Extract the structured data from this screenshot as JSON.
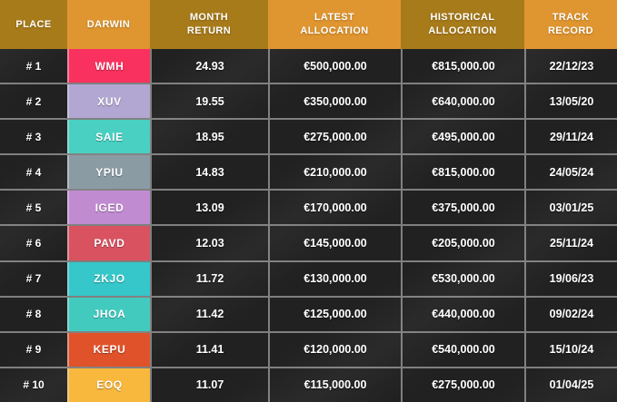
{
  "colors": {
    "header_dark": "#a87b1a",
    "header_light": "#e09630",
    "cell_background": "#212121",
    "grid_line": "rgba(222,222,222,0.5)",
    "text": "#ffffff"
  },
  "table": {
    "columns": [
      {
        "id": "place",
        "label": "PLACE",
        "header_style": "dark"
      },
      {
        "id": "darwin",
        "label": "DARWIN",
        "header_style": "light"
      },
      {
        "id": "month_return",
        "label": "MONTH\nRETURN",
        "header_style": "dark"
      },
      {
        "id": "latest_allocation",
        "label": "LATEST\nALLOCATION",
        "header_style": "light"
      },
      {
        "id": "historical_allocation",
        "label": "HISTORICAL\nALLOCATION",
        "header_style": "dark"
      },
      {
        "id": "track_record",
        "label": "TRACK\nRECORD",
        "header_style": "light"
      }
    ],
    "rows": [
      {
        "place": "# 1",
        "darwin": "WMH",
        "badge_color": "#f9315f",
        "month_return": "24.93",
        "latest_allocation": "€500,000.00",
        "historical_allocation": "€815,000.00",
        "track_record": "22/12/23"
      },
      {
        "place": "# 2",
        "darwin": "XUV",
        "badge_color": "#b1a7d2",
        "month_return": "19.55",
        "latest_allocation": "€350,000.00",
        "historical_allocation": "€640,000.00",
        "track_record": "13/05/20"
      },
      {
        "place": "# 3",
        "darwin": "SAIE",
        "badge_color": "#49d0c2",
        "month_return": "18.95",
        "latest_allocation": "€275,000.00",
        "historical_allocation": "€495,000.00",
        "track_record": "29/11/24"
      },
      {
        "place": "# 4",
        "darwin": "YPIU",
        "badge_color": "#8b9ba4",
        "month_return": "14.83",
        "latest_allocation": "€210,000.00",
        "historical_allocation": "€815,000.00",
        "track_record": "24/05/24"
      },
      {
        "place": "# 5",
        "darwin": "IGED",
        "badge_color": "#c18bd2",
        "month_return": "13.09",
        "latest_allocation": "€170,000.00",
        "historical_allocation": "€375,000.00",
        "track_record": "03/01/25"
      },
      {
        "place": "# 6",
        "darwin": "PAVD",
        "badge_color": "#d95260",
        "month_return": "12.03",
        "latest_allocation": "€145,000.00",
        "historical_allocation": "€205,000.00",
        "track_record": "25/11/24"
      },
      {
        "place": "# 7",
        "darwin": "ZKJO",
        "badge_color": "#35c7c9",
        "month_return": "11.72",
        "latest_allocation": "€130,000.00",
        "historical_allocation": "€530,000.00",
        "track_record": "19/06/23"
      },
      {
        "place": "# 8",
        "darwin": "JHOA",
        "badge_color": "#43cabf",
        "month_return": "11.42",
        "latest_allocation": "€125,000.00",
        "historical_allocation": "€440,000.00",
        "track_record": "09/02/24"
      },
      {
        "place": "# 9",
        "darwin": "KEPU",
        "badge_color": "#e0522a",
        "month_return": "11.41",
        "latest_allocation": "€120,000.00",
        "historical_allocation": "€540,000.00",
        "track_record": "15/10/24"
      },
      {
        "place": "# 10",
        "darwin": "EOQ",
        "badge_color": "#f8b73d",
        "month_return": "11.07",
        "latest_allocation": "€115,000.00",
        "historical_allocation": "€275,000.00",
        "track_record": "01/04/25"
      }
    ]
  },
  "chart_data": {
    "type": "table",
    "columns": [
      "PLACE",
      "DARWIN",
      "MONTH RETURN",
      "LATEST ALLOCATION",
      "HISTORICAL ALLOCATION",
      "TRACK RECORD"
    ],
    "rows": [
      [
        "# 1",
        "WMH",
        "24.93",
        "€500,000.00",
        "€815,000.00",
        "22/12/23"
      ],
      [
        "# 2",
        "XUV",
        "19.55",
        "€350,000.00",
        "€640,000.00",
        "13/05/20"
      ],
      [
        "# 3",
        "SAIE",
        "18.95",
        "€275,000.00",
        "€495,000.00",
        "29/11/24"
      ],
      [
        "# 4",
        "YPIU",
        "14.83",
        "€210,000.00",
        "€815,000.00",
        "24/05/24"
      ],
      [
        "# 5",
        "IGED",
        "13.09",
        "€170,000.00",
        "€375,000.00",
        "03/01/25"
      ],
      [
        "# 6",
        "PAVD",
        "12.03",
        "€145,000.00",
        "€205,000.00",
        "25/11/24"
      ],
      [
        "# 7",
        "ZKJO",
        "11.72",
        "€130,000.00",
        "€530,000.00",
        "19/06/23"
      ],
      [
        "# 8",
        "JHOA",
        "11.42",
        "€125,000.00",
        "€440,000.00",
        "09/02/24"
      ],
      [
        "# 9",
        "KEPU",
        "11.41",
        "€120,000.00",
        "€540,000.00",
        "15/10/24"
      ],
      [
        "# 10",
        "EOQ",
        "11.07",
        "€115,000.00",
        "€275,000.00",
        "01/04/25"
      ]
    ],
    "title": "",
    "legend": false,
    "notes": "Leaderboard table; DARWIN ticker cells have per-row badge colors; headers alternate dark-gold / light-orange."
  }
}
